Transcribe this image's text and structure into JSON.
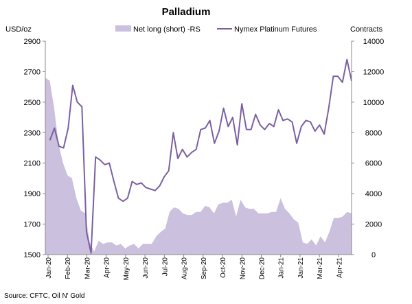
{
  "chart_data": {
    "type": "line",
    "title": "Palladium",
    "ylabel_left": "USD/oz",
    "ylabel_right": "Contracts",
    "ylim_left": [
      1500,
      2900
    ],
    "yticks_left": [
      "1500",
      "1700",
      "1900",
      "2100",
      "2300",
      "2500",
      "2700",
      "2900"
    ],
    "ylim_right": [
      0,
      14000
    ],
    "yticks_right": [
      "0",
      "2000",
      "4000",
      "6000",
      "8000",
      "10000",
      "12000",
      "14000"
    ],
    "x_labels": [
      "Jan-20",
      "Feb-20",
      "Mar-20",
      "Apr-20",
      "May-20",
      "Jun-20",
      "Jul-20",
      "Aug-20",
      "Sep-20",
      "Oct-20",
      "Nov-20",
      "Dec-20",
      "Jan-21",
      "Jan-21",
      "Mar-21",
      "Apr-21"
    ],
    "grid": false,
    "legend_position": "top",
    "source": "Source: CFTC, Oil N' Gold",
    "series": [
      {
        "name": "Net long (short) -RS",
        "type": "area",
        "axis": "right",
        "color": "#cbc0dd",
        "values": [
          11600,
          11400,
          9600,
          7200,
          6000,
          5200,
          5000,
          3700,
          2900,
          2700,
          800,
          200,
          900,
          700,
          800,
          800,
          600,
          700,
          400,
          600,
          700,
          400,
          700,
          700,
          700,
          1200,
          1500,
          1700,
          2800,
          3100,
          3000,
          2700,
          2600,
          2600,
          2800,
          2800,
          3200,
          3100,
          2700,
          3300,
          3400,
          3400,
          3600,
          2500,
          3600,
          3100,
          3000,
          3000,
          2700,
          2700,
          2700,
          2800,
          2800,
          3700,
          3000,
          2700,
          2300,
          2100,
          800,
          700,
          1000,
          600,
          1200,
          800,
          1500,
          2400,
          2400,
          2500,
          2800,
          2700
        ]
      },
      {
        "name": "Nymex Platinum Futures",
        "type": "line",
        "axis": "left",
        "color": "#7b5fa3",
        "values": [
          null,
          2250,
          2330,
          2210,
          2200,
          2330,
          2610,
          2500,
          2470,
          1650,
          1510,
          2140,
          2120,
          2090,
          2100,
          1980,
          1870,
          1850,
          1870,
          1980,
          1960,
          1970,
          1940,
          1930,
          1920,
          1950,
          2010,
          2050,
          2300,
          2130,
          2190,
          2140,
          2170,
          2190,
          2320,
          2330,
          2380,
          2230,
          2310,
          2460,
          2340,
          2400,
          2220,
          2490,
          2320,
          2320,
          2420,
          2350,
          2320,
          2360,
          2340,
          2450,
          2380,
          2390,
          2370,
          2230,
          2340,
          2380,
          2370,
          2310,
          2350,
          2290,
          2460,
          2670,
          2670,
          2630,
          2780,
          2640
        ]
      }
    ]
  }
}
